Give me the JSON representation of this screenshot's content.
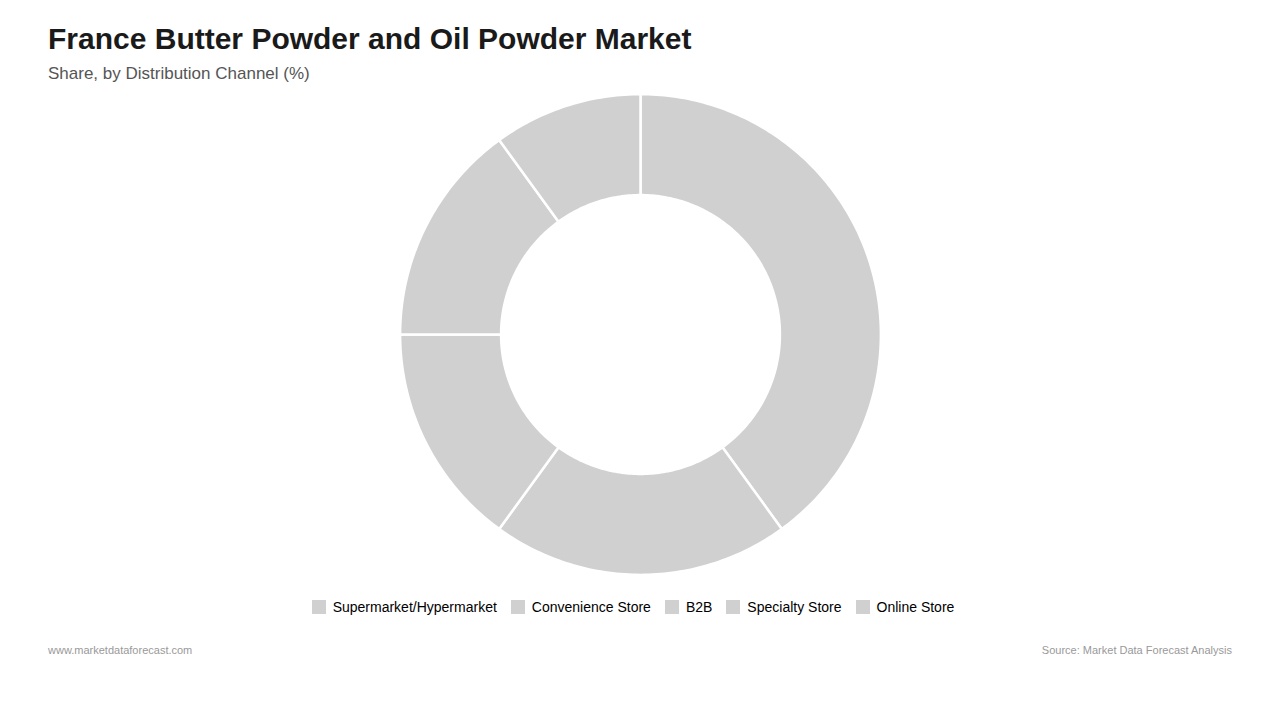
{
  "chart_data": {
    "type": "donut",
    "title": "France Butter Powder and Oil Powder Market",
    "subtitle": "Share, by Distribution Channel (%)",
    "categories": [
      "Supermarket/Hypermarket",
      "Convenience Store",
      "B2B",
      "Specialty Store",
      "Online Store"
    ],
    "values": [
      40,
      20,
      15,
      15,
      10
    ],
    "color": "#d0d0d0",
    "legend": "bottom",
    "annotations": [
      "www.marketdataforecast.com",
      "Source: Market Data Forecast Analysis"
    ]
  }
}
